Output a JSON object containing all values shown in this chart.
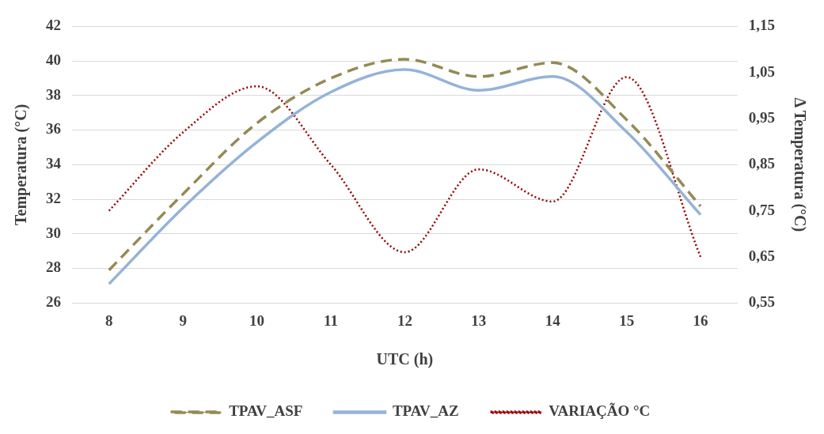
{
  "chart_data": {
    "type": "line",
    "xlabel": "UTC (h)",
    "ylabel": "Temperatura (°C)",
    "y2label": "Δ Temperatura (°C)",
    "categories": [
      "8",
      "9",
      "10",
      "11",
      "12",
      "13",
      "14",
      "15",
      "16"
    ],
    "series": [
      {
        "name": "TPAV_ASF",
        "color": "#948a54",
        "line_style": "dashed",
        "values": [
          27.9,
          32.3,
          36.4,
          39.0,
          40.1,
          39.1,
          39.9,
          36.6,
          31.6
        ]
      },
      {
        "name": "TPAV_AZ",
        "color": "#95b3d7",
        "line_style": "solid",
        "values": [
          27.1,
          31.5,
          35.3,
          38.2,
          39.5,
          38.3,
          39.1,
          35.9,
          31.1
        ]
      },
      {
        "name": "VARIAÇÃO °C",
        "color": "#990000",
        "line_style": "dotted",
        "axis": "y2",
        "values": [
          0.75,
          0.92,
          1.02,
          0.85,
          0.66,
          0.84,
          0.77,
          1.04,
          0.65
        ]
      }
    ],
    "ylim": [
      26,
      42
    ],
    "yticks": [
      26,
      28,
      30,
      32,
      34,
      36,
      38,
      40,
      42
    ],
    "y2lim": [
      0.55,
      1.15
    ],
    "y2ticks": [
      {
        "value": 0.55,
        "label": "0,55"
      },
      {
        "value": 0.65,
        "label": "0,65"
      },
      {
        "value": 0.75,
        "label": "0,75"
      },
      {
        "value": 0.85,
        "label": "0,85"
      },
      {
        "value": 0.95,
        "label": "0,95"
      },
      {
        "value": 1.05,
        "label": "1,05"
      },
      {
        "value": 1.15,
        "label": "1,15"
      }
    ],
    "grid": "y",
    "legend": "bottom",
    "marker": "none"
  }
}
